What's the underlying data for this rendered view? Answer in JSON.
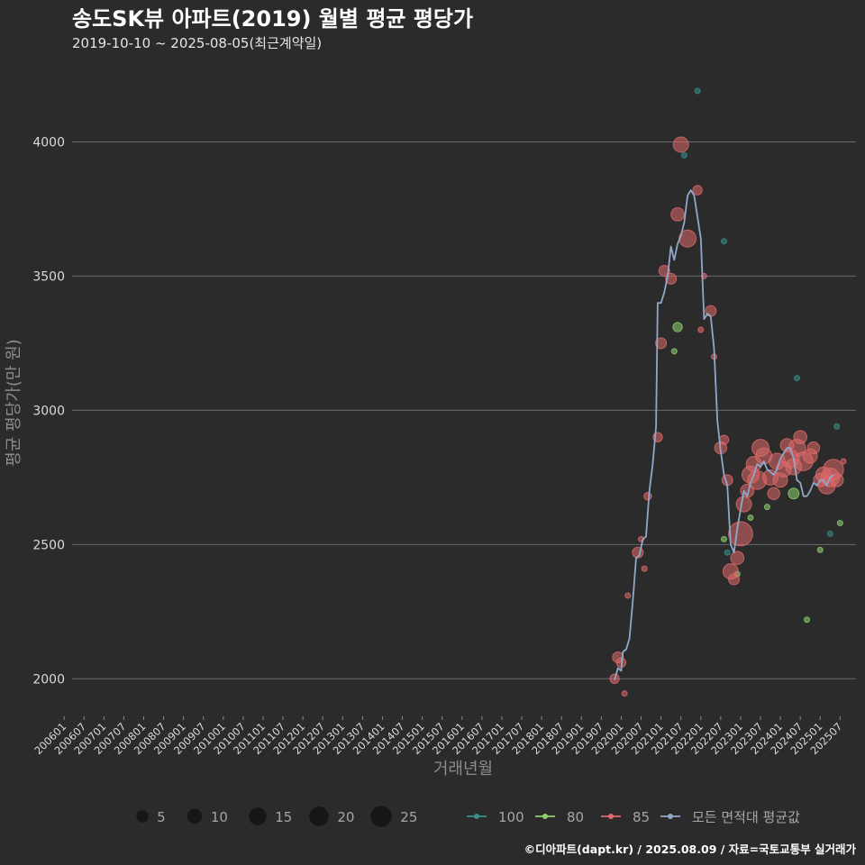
{
  "chart_data": {
    "type": "scatter",
    "title": "송도SK뷰 아파트(2019) 월별 평균 평당가",
    "subtitle": "2019-10-10 ~ 2025-08-05(최근계약일)",
    "xlabel": "거래년월",
    "ylabel": "평균 평당가(만 원)",
    "caption": "©디아파트(dapt.kr) / 2025.08.09 / 자료=국토교통부 실거래가",
    "ylim": [
      1860,
      4260
    ],
    "yticks": [
      2000,
      2500,
      3000,
      3500,
      4000
    ],
    "xlim": [
      2006.2,
      2025.9
    ],
    "x_tick_labels": [
      "200601",
      "200607",
      "200701",
      "200707",
      "200801",
      "200807",
      "200901",
      "200907",
      "201001",
      "201007",
      "201101",
      "201107",
      "201201",
      "201207",
      "201301",
      "201307",
      "201401",
      "201407",
      "201501",
      "201507",
      "201601",
      "201607",
      "201701",
      "201707",
      "201801",
      "201807",
      "201901",
      "201907",
      "202001",
      "202007",
      "202101",
      "202107",
      "202201",
      "202207",
      "202301",
      "202307",
      "202401",
      "202407",
      "202501",
      "202507"
    ],
    "x_tick_values": [
      2006.0,
      2006.5,
      2007.0,
      2007.5,
      2008.0,
      2008.5,
      2009.0,
      2009.5,
      2010.0,
      2010.5,
      2011.0,
      2011.5,
      2012.0,
      2012.5,
      2013.0,
      2013.5,
      2014.0,
      2014.5,
      2015.0,
      2015.5,
      2016.0,
      2016.5,
      2017.0,
      2017.5,
      2018.0,
      2018.5,
      2019.0,
      2019.5,
      2020.0,
      2020.5,
      2021.0,
      2021.5,
      2022.0,
      2022.5,
      2023.0,
      2023.5,
      2024.0,
      2024.5,
      2025.0,
      2025.5
    ],
    "legend_size": {
      "title": "",
      "values": [
        5,
        10,
        15,
        20,
        25
      ]
    },
    "series": [
      {
        "name": "100",
        "color": "#3a8f8a",
        "points": [
          {
            "x": 2021.583,
            "y": 3950,
            "n": 1
          },
          {
            "x": 2021.917,
            "y": 4190,
            "n": 1
          },
          {
            "x": 2022.583,
            "y": 3630,
            "n": 1
          },
          {
            "x": 2022.667,
            "y": 2470,
            "n": 1
          },
          {
            "x": 2024.417,
            "y": 3120,
            "n": 1
          },
          {
            "x": 2025.25,
            "y": 2540,
            "n": 1
          },
          {
            "x": 2025.417,
            "y": 2940,
            "n": 1
          }
        ]
      },
      {
        "name": "80",
        "color": "#8fd16e",
        "points": [
          {
            "x": 2021.333,
            "y": 3220,
            "n": 1
          },
          {
            "x": 2021.417,
            "y": 3310,
            "n": 3
          },
          {
            "x": 2022.583,
            "y": 2520,
            "n": 1
          },
          {
            "x": 2022.917,
            "y": 2390,
            "n": 1
          },
          {
            "x": 2023.25,
            "y": 2600,
            "n": 1
          },
          {
            "x": 2023.667,
            "y": 2640,
            "n": 1
          },
          {
            "x": 2024.333,
            "y": 2690,
            "n": 4
          },
          {
            "x": 2024.667,
            "y": 2220,
            "n": 1
          },
          {
            "x": 2025.0,
            "y": 2480,
            "n": 1
          },
          {
            "x": 2025.5,
            "y": 2580,
            "n": 1
          }
        ]
      },
      {
        "name": "85",
        "color": "#e06a6a",
        "points": [
          {
            "x": 2019.833,
            "y": 2000,
            "n": 3
          },
          {
            "x": 2019.917,
            "y": 2080,
            "n": 4
          },
          {
            "x": 2020.0,
            "y": 2060,
            "n": 3
          },
          {
            "x": 2020.083,
            "y": 1945,
            "n": 1
          },
          {
            "x": 2020.167,
            "y": 2310,
            "n": 1
          },
          {
            "x": 2020.417,
            "y": 2470,
            "n": 4
          },
          {
            "x": 2020.5,
            "y": 2520,
            "n": 1
          },
          {
            "x": 2020.583,
            "y": 2410,
            "n": 1
          },
          {
            "x": 2020.667,
            "y": 2680,
            "n": 2
          },
          {
            "x": 2020.917,
            "y": 2900,
            "n": 3
          },
          {
            "x": 2021.0,
            "y": 3250,
            "n": 4
          },
          {
            "x": 2021.083,
            "y": 3520,
            "n": 4
          },
          {
            "x": 2021.25,
            "y": 3490,
            "n": 4
          },
          {
            "x": 2021.417,
            "y": 3730,
            "n": 6
          },
          {
            "x": 2021.5,
            "y": 3990,
            "n": 8
          },
          {
            "x": 2021.667,
            "y": 3640,
            "n": 10
          },
          {
            "x": 2021.917,
            "y": 3820,
            "n": 3
          },
          {
            "x": 2022.0,
            "y": 3300,
            "n": 1
          },
          {
            "x": 2022.083,
            "y": 3500,
            "n": 1
          },
          {
            "x": 2022.25,
            "y": 3370,
            "n": 4
          },
          {
            "x": 2022.333,
            "y": 3200,
            "n": 1
          },
          {
            "x": 2022.5,
            "y": 2860,
            "n": 5
          },
          {
            "x": 2022.583,
            "y": 2890,
            "n": 3
          },
          {
            "x": 2022.667,
            "y": 2740,
            "n": 4
          },
          {
            "x": 2022.75,
            "y": 2400,
            "n": 8
          },
          {
            "x": 2022.833,
            "y": 2370,
            "n": 4
          },
          {
            "x": 2022.917,
            "y": 2450,
            "n": 6
          },
          {
            "x": 2023.0,
            "y": 2540,
            "n": 20
          },
          {
            "x": 2023.083,
            "y": 2650,
            "n": 8
          },
          {
            "x": 2023.167,
            "y": 2700,
            "n": 6
          },
          {
            "x": 2023.25,
            "y": 2760,
            "n": 10
          },
          {
            "x": 2023.333,
            "y": 2800,
            "n": 8
          },
          {
            "x": 2023.417,
            "y": 2740,
            "n": 12
          },
          {
            "x": 2023.5,
            "y": 2860,
            "n": 10
          },
          {
            "x": 2023.583,
            "y": 2830,
            "n": 9
          },
          {
            "x": 2023.75,
            "y": 2750,
            "n": 8
          },
          {
            "x": 2023.833,
            "y": 2690,
            "n": 5
          },
          {
            "x": 2023.917,
            "y": 2810,
            "n": 9
          },
          {
            "x": 2024.0,
            "y": 2740,
            "n": 7
          },
          {
            "x": 2024.083,
            "y": 2780,
            "n": 8
          },
          {
            "x": 2024.167,
            "y": 2870,
            "n": 6
          },
          {
            "x": 2024.25,
            "y": 2820,
            "n": 11
          },
          {
            "x": 2024.333,
            "y": 2790,
            "n": 9
          },
          {
            "x": 2024.417,
            "y": 2860,
            "n": 10
          },
          {
            "x": 2024.5,
            "y": 2900,
            "n": 6
          },
          {
            "x": 2024.583,
            "y": 2810,
            "n": 12
          },
          {
            "x": 2024.75,
            "y": 2830,
            "n": 7
          },
          {
            "x": 2024.833,
            "y": 2860,
            "n": 5
          },
          {
            "x": 2025.0,
            "y": 2740,
            "n": 6
          },
          {
            "x": 2025.083,
            "y": 2760,
            "n": 8
          },
          {
            "x": 2025.167,
            "y": 2720,
            "n": 10
          },
          {
            "x": 2025.25,
            "y": 2750,
            "n": 12
          },
          {
            "x": 2025.333,
            "y": 2780,
            "n": 14
          },
          {
            "x": 2025.417,
            "y": 2740,
            "n": 6
          },
          {
            "x": 2025.583,
            "y": 2810,
            "n": 1
          }
        ]
      }
    ],
    "average_line": {
      "name": "모든 면적대 평균값",
      "color": "#8fa8c8",
      "points": [
        [
          2019.833,
          1995
        ],
        [
          2019.917,
          2040
        ],
        [
          2020.0,
          2030
        ],
        [
          2020.042,
          2100
        ],
        [
          2020.125,
          2110
        ],
        [
          2020.208,
          2150
        ],
        [
          2020.292,
          2290
        ],
        [
          2020.375,
          2450
        ],
        [
          2020.458,
          2460
        ],
        [
          2020.542,
          2520
        ],
        [
          2020.625,
          2530
        ],
        [
          2020.708,
          2700
        ],
        [
          2020.792,
          2800
        ],
        [
          2020.875,
          2940
        ],
        [
          2020.917,
          3400
        ],
        [
          2021.0,
          3400
        ],
        [
          2021.083,
          3440
        ],
        [
          2021.167,
          3500
        ],
        [
          2021.25,
          3610
        ],
        [
          2021.333,
          3560
        ],
        [
          2021.417,
          3620
        ],
        [
          2021.5,
          3650
        ],
        [
          2021.583,
          3700
        ],
        [
          2021.667,
          3800
        ],
        [
          2021.75,
          3820
        ],
        [
          2021.833,
          3800
        ],
        [
          2021.917,
          3720
        ],
        [
          2022.0,
          3640
        ],
        [
          2022.083,
          3340
        ],
        [
          2022.167,
          3360
        ],
        [
          2022.25,
          3350
        ],
        [
          2022.333,
          3230
        ],
        [
          2022.417,
          2960
        ],
        [
          2022.5,
          2850
        ],
        [
          2022.583,
          2760
        ],
        [
          2022.667,
          2720
        ],
        [
          2022.75,
          2500
        ],
        [
          2022.833,
          2470
        ],
        [
          2022.917,
          2560
        ],
        [
          2023.0,
          2630
        ],
        [
          2023.083,
          2700
        ],
        [
          2023.167,
          2680
        ],
        [
          2023.25,
          2730
        ],
        [
          2023.333,
          2760
        ],
        [
          2023.417,
          2800
        ],
        [
          2023.5,
          2790
        ],
        [
          2023.583,
          2810
        ],
        [
          2023.667,
          2780
        ],
        [
          2023.75,
          2770
        ],
        [
          2023.833,
          2760
        ],
        [
          2023.917,
          2780
        ],
        [
          2024.0,
          2820
        ],
        [
          2024.083,
          2840
        ],
        [
          2024.167,
          2860
        ],
        [
          2024.25,
          2860
        ],
        [
          2024.333,
          2820
        ],
        [
          2024.417,
          2740
        ],
        [
          2024.5,
          2730
        ],
        [
          2024.583,
          2680
        ],
        [
          2024.667,
          2680
        ],
        [
          2024.75,
          2700
        ],
        [
          2024.833,
          2730
        ],
        [
          2024.917,
          2720
        ],
        [
          2025.0,
          2740
        ],
        [
          2025.083,
          2740
        ],
        [
          2025.167,
          2720
        ],
        [
          2025.25,
          2750
        ],
        [
          2025.333,
          2760
        ]
      ]
    }
  }
}
